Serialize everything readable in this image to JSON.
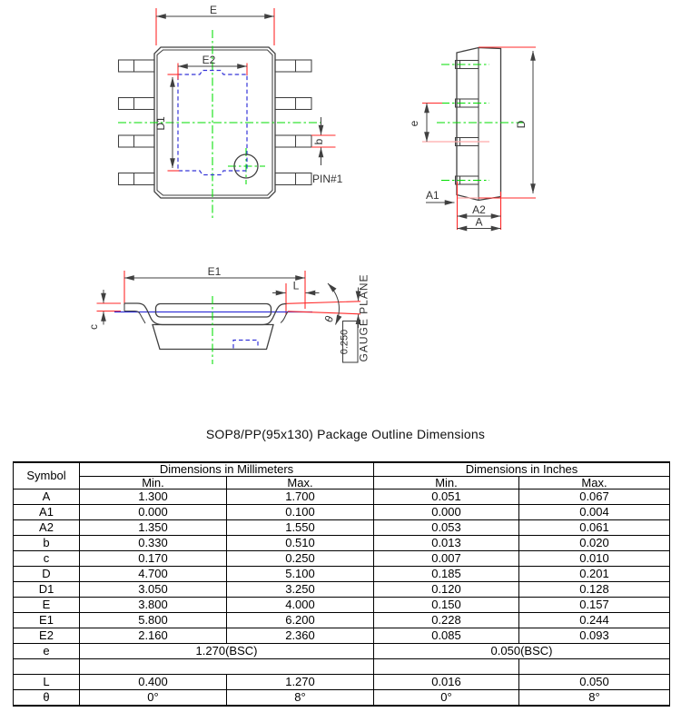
{
  "page": {
    "title": "SOP8/PP(95x130) Package Outline Dimensions"
  },
  "colors": {
    "line": "#404040",
    "dim_red": "#ff2a2a",
    "dim_red_pale": "#ffaaaa",
    "center_green": "#00dd00",
    "pad_blue": "#3535d8"
  },
  "drawings": {
    "top_view": {
      "dim_e": "E",
      "dim_e2": "E2",
      "dim_d1": "D1",
      "dim_b": "b",
      "pin1_label": "PIN#1"
    },
    "side_view": {
      "dim_e": "e",
      "dim_d": "D",
      "dim_a1": "A1",
      "dim_a2": "A2",
      "dim_a": "A"
    },
    "front_view": {
      "dim_e1": "E1",
      "dim_l": "L",
      "dim_c": "c",
      "dim_theta": "θ",
      "gauge_offset": "0.250",
      "gauge_plane": "GAUGE PLANE"
    }
  },
  "table": {
    "col_symbol": "Symbol",
    "col_mm": "Dimensions in Millimeters",
    "col_inch": "Dimensions in Inches",
    "col_min_mm": "Min.",
    "col_max_mm": "Max.",
    "col_min_in": "Min.",
    "col_max_in": "Max.",
    "rows": [
      {
        "symbol": "A",
        "mm_min": "1.300",
        "mm_max": "1.700",
        "in_min": "0.051",
        "in_max": "0.067"
      },
      {
        "symbol": "A1",
        "mm_min": "0.000",
        "mm_max": "0.100",
        "in_min": "0.000",
        "in_max": "0.004"
      },
      {
        "symbol": "A2",
        "mm_min": "1.350",
        "mm_max": "1.550",
        "in_min": "0.053",
        "in_max": "0.061"
      },
      {
        "symbol": "b",
        "mm_min": "0.330",
        "mm_max": "0.510",
        "in_min": "0.013",
        "in_max": "0.020"
      },
      {
        "symbol": "c",
        "mm_min": "0.170",
        "mm_max": "0.250",
        "in_min": "0.007",
        "in_max": "0.010"
      },
      {
        "symbol": "D",
        "mm_min": "4.700",
        "mm_max": "5.100",
        "in_min": "0.185",
        "in_max": "0.201"
      },
      {
        "symbol": "D1",
        "mm_min": "3.050",
        "mm_max": "3.250",
        "in_min": "0.120",
        "in_max": "0.128"
      },
      {
        "symbol": "E",
        "mm_min": "3.800",
        "mm_max": "4.000",
        "in_min": "0.150",
        "in_max": "0.157"
      },
      {
        "symbol": "E1",
        "mm_min": "5.800",
        "mm_max": "6.200",
        "in_min": "0.228",
        "in_max": "0.244"
      },
      {
        "symbol": "E2",
        "mm_min": "2.160",
        "mm_max": "2.360",
        "in_min": "0.085",
        "in_max": "0.093"
      },
      {
        "symbol": "e",
        "mm_span": "1.270(BSC)",
        "in_span": "0.050(BSC)"
      },
      {
        "symbol": "",
        "empty": true
      },
      {
        "symbol": "L",
        "mm_min": "0.400",
        "mm_max": "1.270",
        "in_min": "0.016",
        "in_max": "0.050"
      },
      {
        "symbol": "θ",
        "mm_min": "0°",
        "mm_max": "8°",
        "in_min": "0°",
        "in_max": "8°"
      }
    ]
  }
}
